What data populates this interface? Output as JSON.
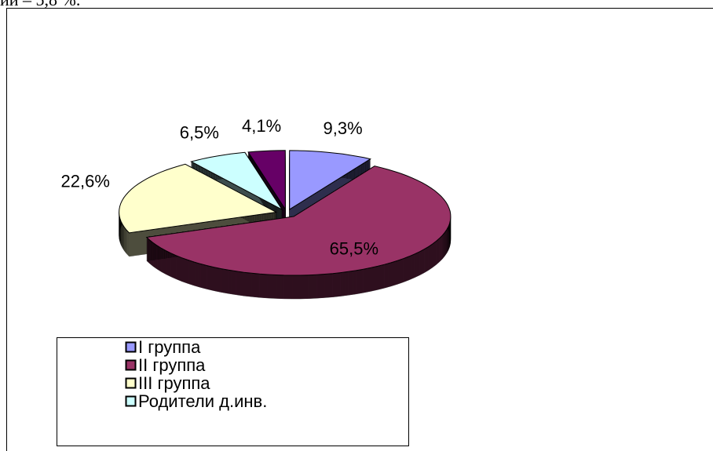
{
  "page_text": "ии – 5,8 %.",
  "chart_data": {
    "type": "pie3d",
    "categories": [
      "I группа",
      "II группа",
      "III группа",
      "Родители  д.инв.",
      null
    ],
    "values": [
      9.3,
      65.5,
      22.6,
      6.5,
      4.1
    ],
    "value_labels": [
      "9,3%",
      "65,5%",
      "22,6%",
      "6,5%",
      "4,1%"
    ],
    "colors": [
      "#9999ff",
      "#993366",
      "#ffffcc",
      "#ccffff",
      "#660066"
    ],
    "legend": "bottom-left"
  }
}
